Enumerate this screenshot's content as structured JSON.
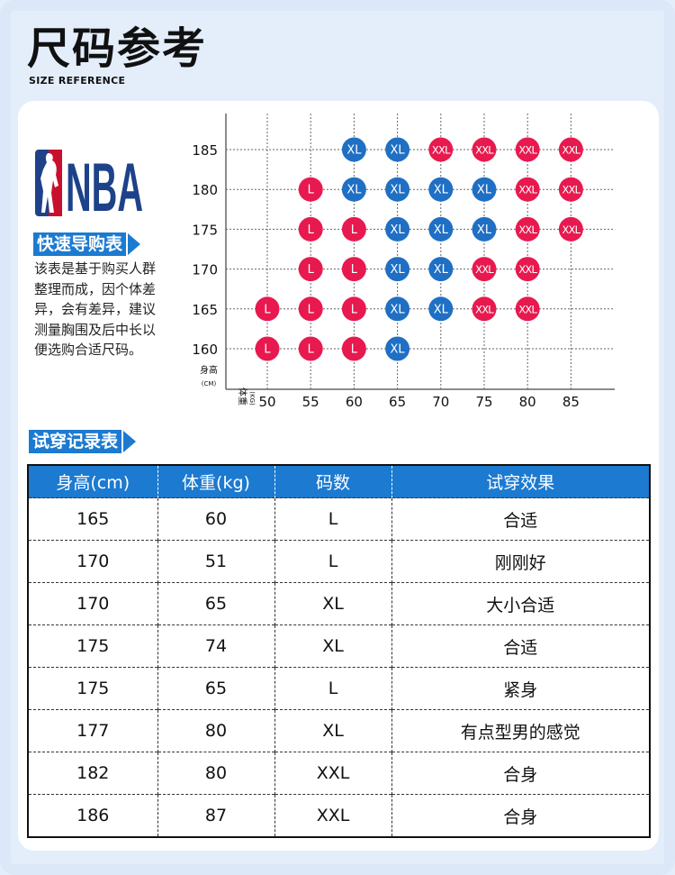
{
  "header": {
    "title": "尺码参考",
    "subtitle": "SIZE REFERENCE"
  },
  "logo": {
    "text": "NBA",
    "colors": {
      "blue": "#1d428a",
      "red": "#c8102e"
    }
  },
  "quick_guide": {
    "label": "快速导购表",
    "description": "该表是基于购买人群整理而成，因个体差异，会有差异，建议测量胸围及后中长以便选购合适尺码。"
  },
  "chart_data": {
    "type": "scatter",
    "title": "",
    "xlabel": "体重(KG)",
    "ylabel": "身高(CM)",
    "x_ticks": [
      50,
      55,
      60,
      65,
      70,
      75,
      80,
      85
    ],
    "y_ticks": [
      185,
      180,
      175,
      170,
      165,
      160
    ],
    "colors": {
      "L": "#e8194f",
      "XL": "#1f6fc4",
      "XXL": "#e8194f"
    },
    "points": [
      {
        "height": 185,
        "weight": 60,
        "size": "XL"
      },
      {
        "height": 185,
        "weight": 65,
        "size": "XL"
      },
      {
        "height": 185,
        "weight": 70,
        "size": "XXL"
      },
      {
        "height": 185,
        "weight": 75,
        "size": "XXL"
      },
      {
        "height": 185,
        "weight": 80,
        "size": "XXL"
      },
      {
        "height": 185,
        "weight": 85,
        "size": "XXL"
      },
      {
        "height": 180,
        "weight": 55,
        "size": "L"
      },
      {
        "height": 180,
        "weight": 60,
        "size": "XL"
      },
      {
        "height": 180,
        "weight": 65,
        "size": "XL"
      },
      {
        "height": 180,
        "weight": 70,
        "size": "XL"
      },
      {
        "height": 180,
        "weight": 75,
        "size": "XL"
      },
      {
        "height": 180,
        "weight": 80,
        "size": "XXL"
      },
      {
        "height": 180,
        "weight": 85,
        "size": "XXL"
      },
      {
        "height": 175,
        "weight": 55,
        "size": "L"
      },
      {
        "height": 175,
        "weight": 60,
        "size": "L"
      },
      {
        "height": 175,
        "weight": 65,
        "size": "XL"
      },
      {
        "height": 175,
        "weight": 70,
        "size": "XL"
      },
      {
        "height": 175,
        "weight": 75,
        "size": "XL"
      },
      {
        "height": 175,
        "weight": 80,
        "size": "XXL"
      },
      {
        "height": 175,
        "weight": 85,
        "size": "XXL"
      },
      {
        "height": 170,
        "weight": 55,
        "size": "L"
      },
      {
        "height": 170,
        "weight": 60,
        "size": "L"
      },
      {
        "height": 170,
        "weight": 65,
        "size": "XL"
      },
      {
        "height": 170,
        "weight": 70,
        "size": "XL"
      },
      {
        "height": 170,
        "weight": 75,
        "size": "XXL"
      },
      {
        "height": 170,
        "weight": 80,
        "size": "XXL"
      },
      {
        "height": 165,
        "weight": 50,
        "size": "L"
      },
      {
        "height": 165,
        "weight": 55,
        "size": "L"
      },
      {
        "height": 165,
        "weight": 60,
        "size": "L"
      },
      {
        "height": 165,
        "weight": 65,
        "size": "XL"
      },
      {
        "height": 165,
        "weight": 70,
        "size": "XL"
      },
      {
        "height": 165,
        "weight": 75,
        "size": "XXL"
      },
      {
        "height": 165,
        "weight": 80,
        "size": "XXL"
      },
      {
        "height": 160,
        "weight": 50,
        "size": "L"
      },
      {
        "height": 160,
        "weight": 55,
        "size": "L"
      },
      {
        "height": 160,
        "weight": 60,
        "size": "L"
      },
      {
        "height": 160,
        "weight": 65,
        "size": "XL"
      }
    ]
  },
  "axis_labels": {
    "y": "身高",
    "y_unit": "(CM)",
    "x": "体重",
    "x_unit": "(KG)"
  },
  "trial_record": {
    "label": "试穿记录表",
    "headers": [
      "身高(cm)",
      "体重(kg)",
      "码数",
      "试穿效果"
    ],
    "rows": [
      [
        "165",
        "60",
        "L",
        "合适"
      ],
      [
        "170",
        "51",
        "L",
        "刚刚好"
      ],
      [
        "170",
        "65",
        "XL",
        "大小合适"
      ],
      [
        "175",
        "74",
        "XL",
        "合适"
      ],
      [
        "175",
        "65",
        "L",
        "紧身"
      ],
      [
        "177",
        "80",
        "XL",
        "有点型男的感觉"
      ],
      [
        "182",
        "80",
        "XXL",
        "合身"
      ],
      [
        "186",
        "87",
        "XXL",
        "合身"
      ]
    ]
  }
}
